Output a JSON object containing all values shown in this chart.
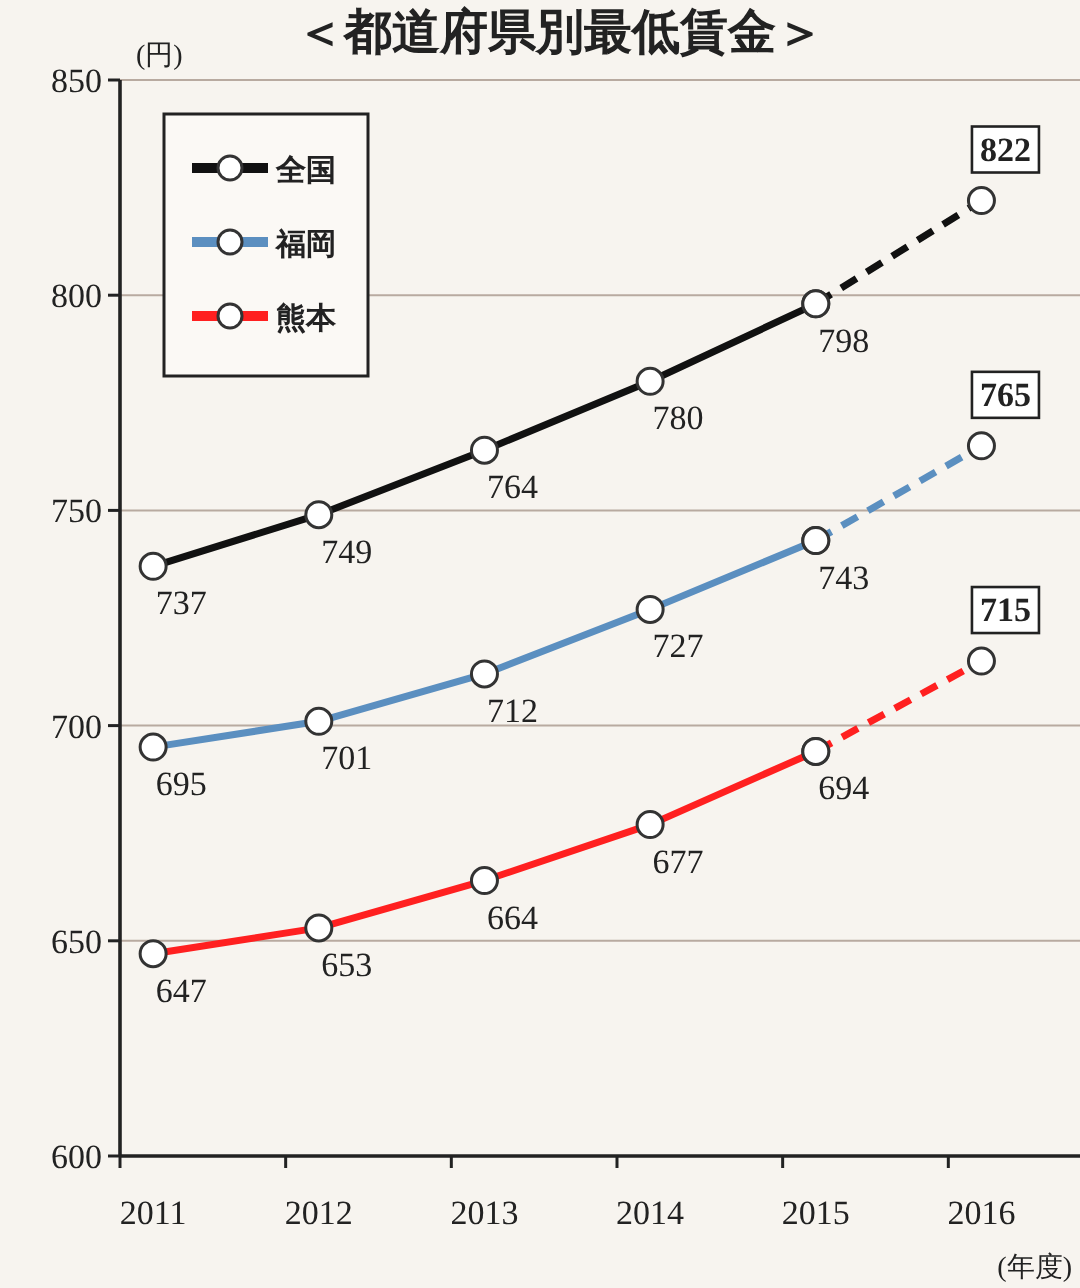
{
  "chart_data": {
    "type": "line",
    "title": "＜都道府県別最低賃金＞",
    "ylabel": "(円)",
    "xlabel": "(年度)",
    "categories": [
      "2011",
      "2012",
      "2013",
      "2014",
      "2015",
      "2016"
    ],
    "series": [
      {
        "name": "全国",
        "color": "#111111",
        "line_style": "solid",
        "values": [
          737,
          749,
          764,
          780,
          798,
          null
        ],
        "value_labels": [
          "737",
          "749",
          "764",
          "780",
          "798",
          null
        ]
      },
      {
        "name": "福岡",
        "color": "#5b8fc0",
        "line_style": "solid",
        "values": [
          695,
          701,
          712,
          727,
          743,
          null
        ],
        "value_labels": [
          "695",
          "701",
          "712",
          "727",
          "743",
          null
        ]
      },
      {
        "name": "熊本",
        "color": "#ff2020",
        "line_style": "solid",
        "values": [
          647,
          653,
          664,
          677,
          694,
          null
        ],
        "value_labels": [
          "647",
          "653",
          "664",
          "677",
          "694",
          null
        ]
      },
      {
        "color": "#111111",
        "line_style": "dashed",
        "values": [
          null,
          null,
          null,
          null,
          798,
          822
        ],
        "value_labels": [
          null,
          null,
          null,
          null,
          null,
          "822"
        ]
      },
      {
        "color": "#5b8fc0",
        "line_style": "dashed",
        "values": [
          null,
          null,
          null,
          null,
          743,
          765
        ],
        "value_labels": [
          null,
          null,
          null,
          null,
          null,
          "765"
        ]
      },
      {
        "color": "#ff2020",
        "line_style": "dashed",
        "values": [
          null,
          null,
          null,
          null,
          694,
          715
        ],
        "value_labels": [
          null,
          null,
          null,
          null,
          null,
          "715"
        ]
      }
    ],
    "ylim": [
      600,
      850
    ],
    "yticks": [
      600,
      650,
      700,
      750,
      800,
      850
    ],
    "grid": "y",
    "legend": "top left",
    "marker": "circle"
  }
}
